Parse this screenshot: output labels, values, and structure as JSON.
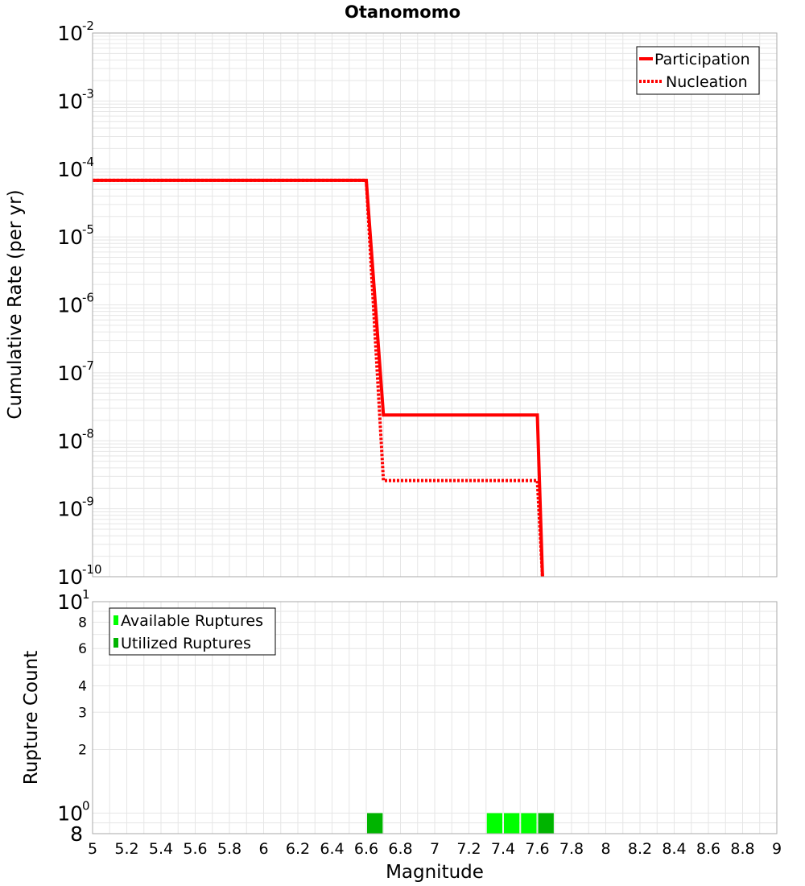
{
  "colors": {
    "rate_line": "#ff0000",
    "available": "#00ff00",
    "utilized": "#00b400",
    "grid": "#e6e6e6",
    "frame": "#aaaaaa"
  },
  "chart_data": [
    {
      "type": "line",
      "title": "Otanomomo",
      "xlabel": "",
      "ylabel": "Cumulative Rate (per yr)",
      "xlim": [
        5,
        9
      ],
      "ylim": [
        1e-10,
        0.01
      ],
      "yscale": "log",
      "grid": true,
      "legend_position": "top-right",
      "y_tick_labels": [
        {
          "base": "10",
          "exp": "-2"
        },
        {
          "base": "10",
          "exp": "-3"
        },
        {
          "base": "10",
          "exp": "-4"
        },
        {
          "base": "10",
          "exp": "-5"
        },
        {
          "base": "10",
          "exp": "-6"
        },
        {
          "base": "10",
          "exp": "-7"
        },
        {
          "base": "10",
          "exp": "-8"
        },
        {
          "base": "10",
          "exp": "-9"
        },
        {
          "base": "10",
          "exp": "-10"
        }
      ],
      "series": [
        {
          "name": "Participation",
          "style": "solid",
          "x": [
            5.0,
            6.6,
            6.7,
            7.6,
            7.63
          ],
          "y": [
            6.8e-05,
            6.8e-05,
            2.4e-08,
            2.4e-08,
            1e-10
          ]
        },
        {
          "name": "Nucleation",
          "style": "dotted",
          "x": [
            5.0,
            6.6,
            6.7,
            7.6,
            7.63
          ],
          "y": [
            6.8e-05,
            6.8e-05,
            2.6e-09,
            2.6e-09,
            1e-10
          ]
        }
      ]
    },
    {
      "type": "bar",
      "title": "",
      "xlabel": "Magnitude",
      "ylabel": "Rupture Count",
      "xlim": [
        5,
        9
      ],
      "ylim": [
        0.8,
        10
      ],
      "yscale": "log",
      "grid": true,
      "legend_position": "top-left",
      "x_tick_labels": [
        "5",
        "5.2",
        "5.4",
        "5.6",
        "5.8",
        "6",
        "6.2",
        "6.4",
        "6.6",
        "6.8",
        "7",
        "7.2",
        "7.4",
        "7.6",
        "7.8",
        "8",
        "8.2",
        "8.4",
        "8.6",
        "8.8",
        "9"
      ],
      "y_tick_labels": [
        {
          "value": 10,
          "label": "10",
          "exp": "1",
          "major": true
        },
        {
          "value": 8,
          "label": "8",
          "exp": "",
          "major": false
        },
        {
          "value": 6,
          "label": "6",
          "exp": "",
          "major": false
        },
        {
          "value": 4,
          "label": "4",
          "exp": "",
          "major": false
        },
        {
          "value": 3,
          "label": "3",
          "exp": "",
          "major": false
        },
        {
          "value": 2,
          "label": "2",
          "exp": "",
          "major": false
        },
        {
          "value": 1,
          "label": "10",
          "exp": "0",
          "major": true
        },
        {
          "value": 0.8,
          "label": "8",
          "exp": "",
          "major": true
        }
      ],
      "bin_width": 0.1,
      "series": [
        {
          "name": "Available Ruptures",
          "bins": [
            6.65,
            7.35,
            7.45,
            7.55,
            7.65
          ],
          "values": [
            1,
            1,
            1,
            1,
            1
          ]
        },
        {
          "name": "Utilized Ruptures",
          "bins": [
            6.65,
            7.65
          ],
          "values": [
            1,
            1
          ]
        }
      ]
    }
  ]
}
